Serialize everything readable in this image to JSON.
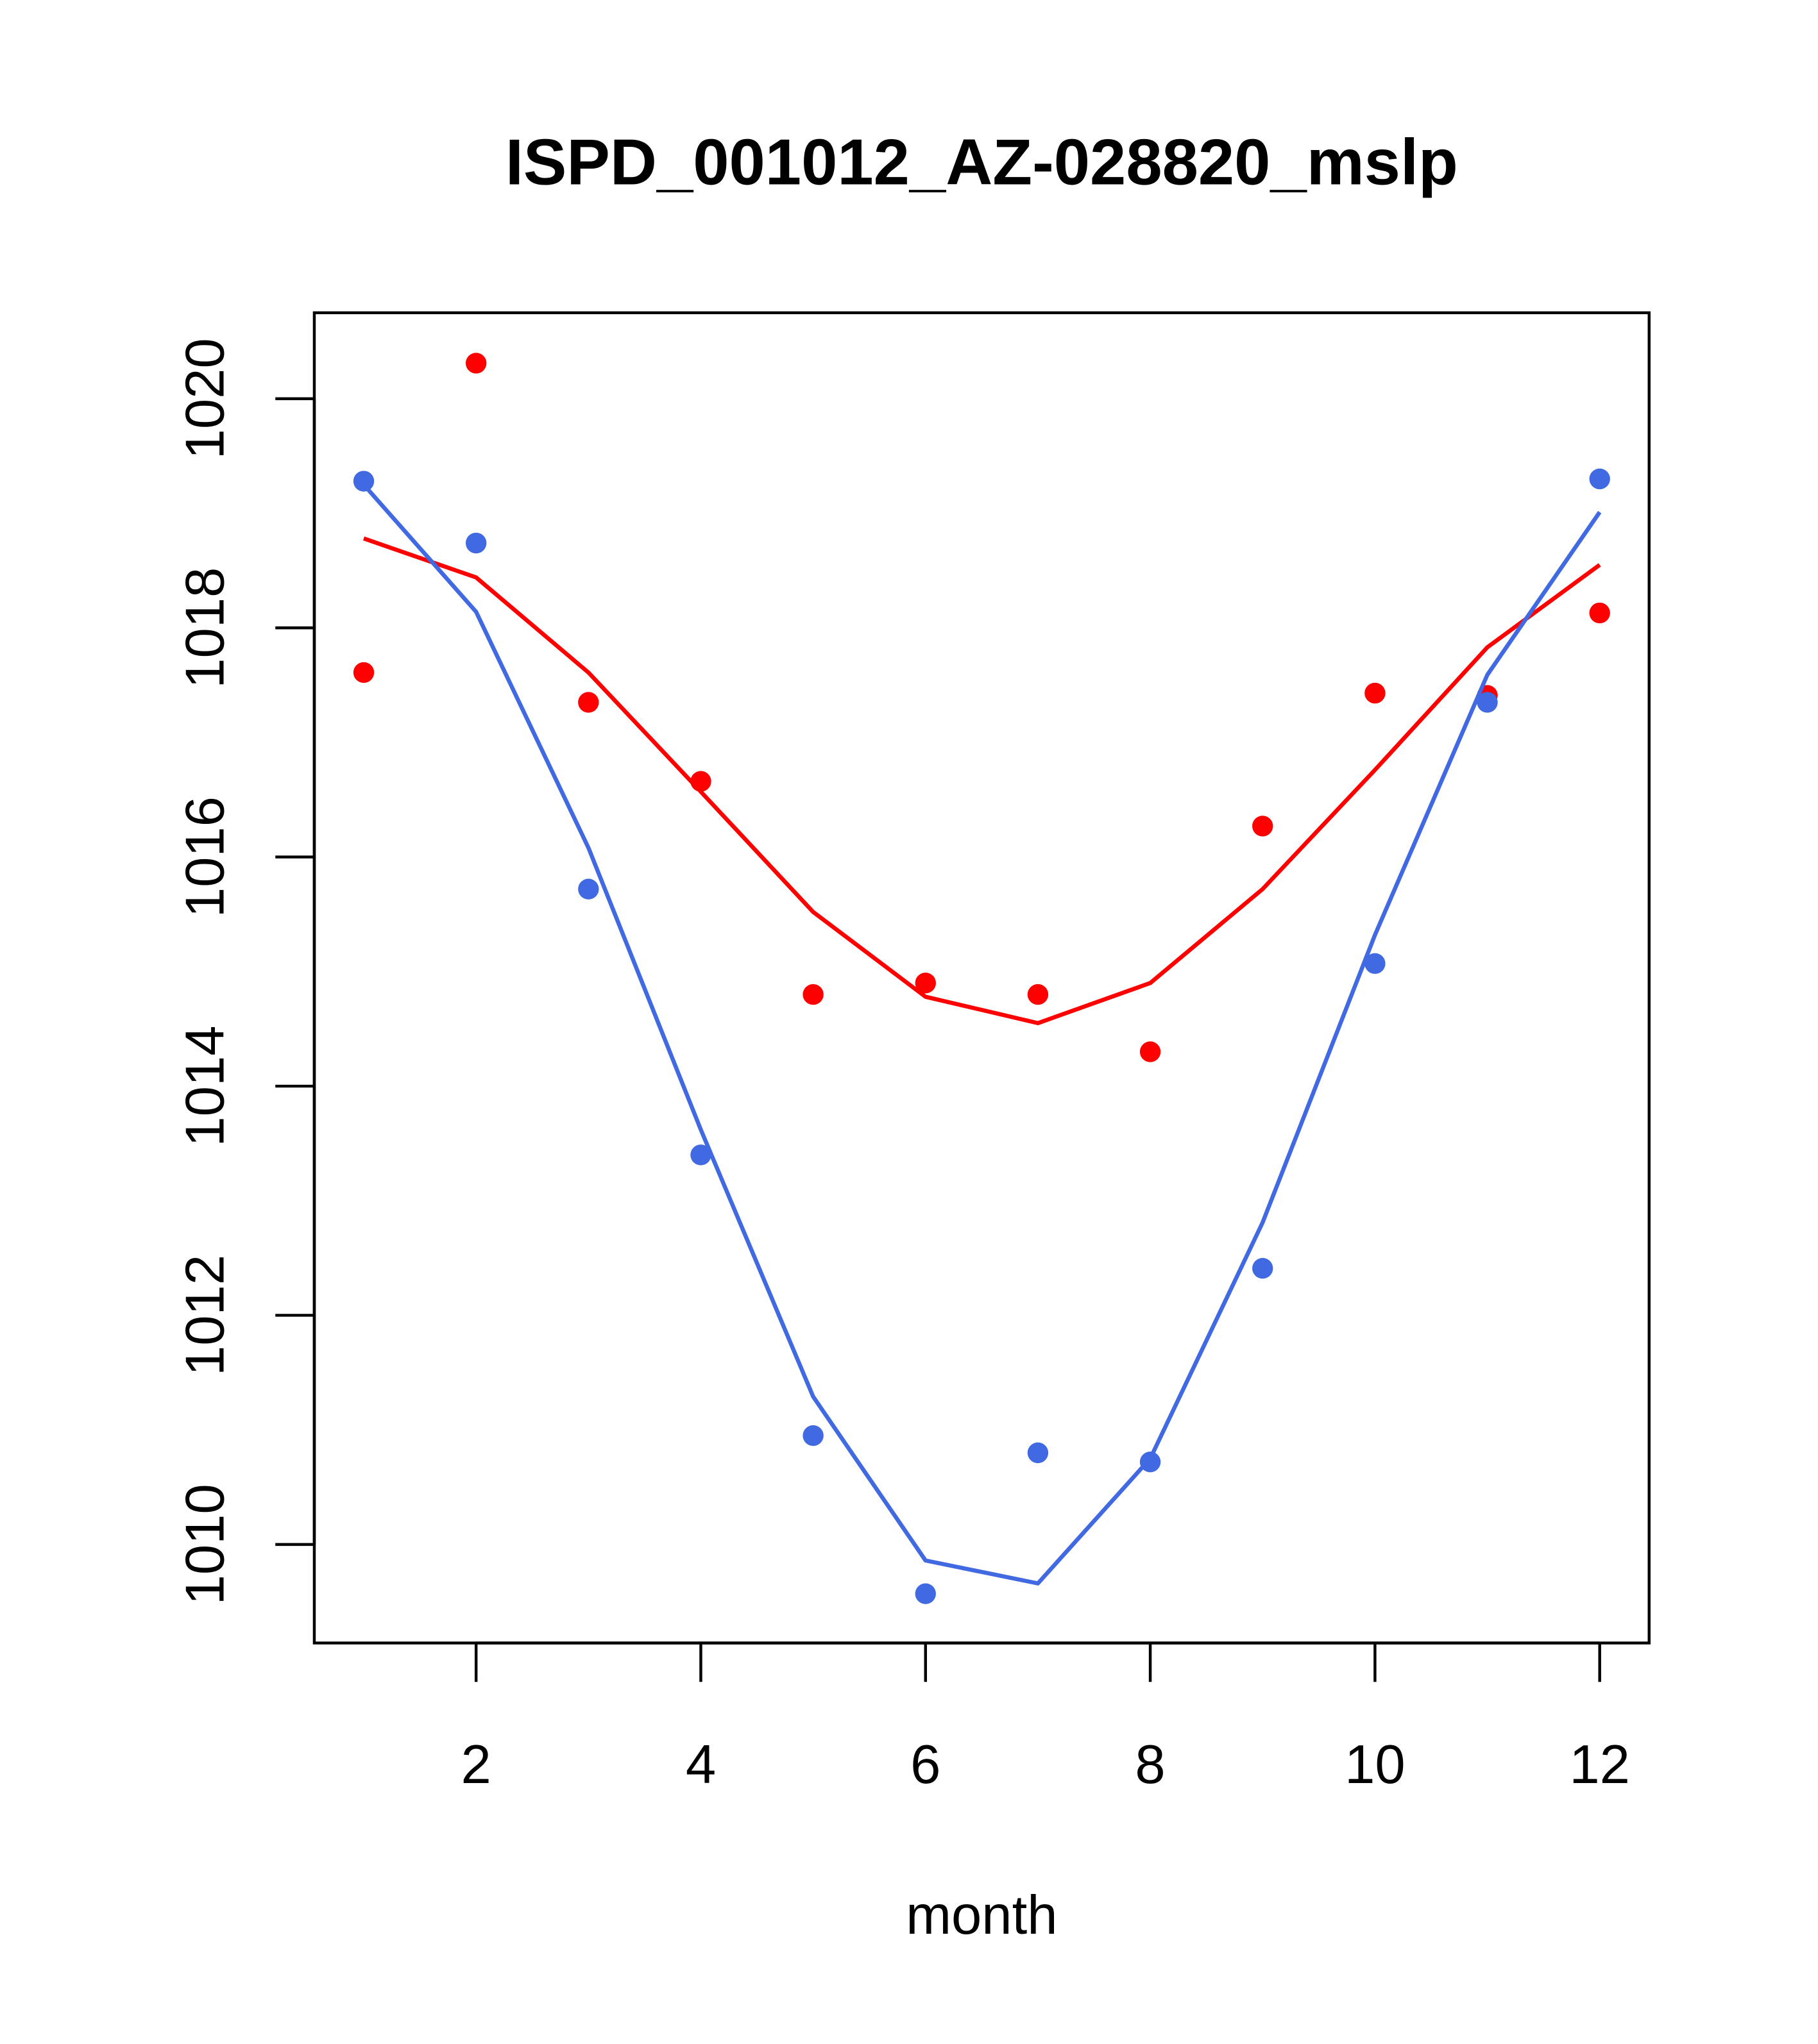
{
  "chart_data": {
    "type": "line",
    "title": "ISPD_001012_AZ-028820_mslp",
    "xlabel": "month",
    "ylabel": "",
    "xlim": [
      0.56,
      12.44
    ],
    "ylim": [
      1009.14,
      1020.75
    ],
    "xticks": [
      2,
      4,
      6,
      8,
      10,
      12
    ],
    "xtick_labels": [
      "2",
      "4",
      "6",
      "8",
      "10",
      "12"
    ],
    "yticks": [
      1010,
      1012,
      1014,
      1016,
      1018,
      1020
    ],
    "ytick_labels": [
      "1010",
      "1012",
      "1014",
      "1016",
      "1018",
      "1020"
    ],
    "grid": false,
    "x": [
      1,
      2,
      3,
      4,
      5,
      6,
      7,
      8,
      9,
      10,
      11,
      12
    ],
    "series": [
      {
        "name": "red points",
        "kind": "points",
        "color": "#ff0000",
        "values": [
          1017.61,
          1020.31,
          1017.35,
          1016.66,
          1014.8,
          1014.9,
          1014.8,
          1014.3,
          1016.27,
          1017.43,
          1017.41,
          1018.13
        ]
      },
      {
        "name": "red line",
        "kind": "line",
        "color": "#ff0000",
        "values": [
          1018.78,
          1018.44,
          1017.61,
          1016.57,
          1015.52,
          1014.78,
          1014.55,
          1014.9,
          1015.72,
          1016.76,
          1017.83,
          1018.55
        ]
      },
      {
        "name": "blue points",
        "kind": "points",
        "color": "#4169e1",
        "values": [
          1019.28,
          1018.74,
          1015.72,
          1013.4,
          1010.95,
          1009.57,
          1010.8,
          1010.72,
          1012.41,
          1015.07,
          1017.35,
          1019.3
        ]
      },
      {
        "name": "blue line",
        "kind": "line",
        "color": "#4169e1",
        "values": [
          1019.25,
          1018.14,
          1016.08,
          1013.62,
          1011.29,
          1009.86,
          1009.66,
          1010.75,
          1012.81,
          1015.32,
          1017.59,
          1019.01
        ]
      }
    ]
  }
}
